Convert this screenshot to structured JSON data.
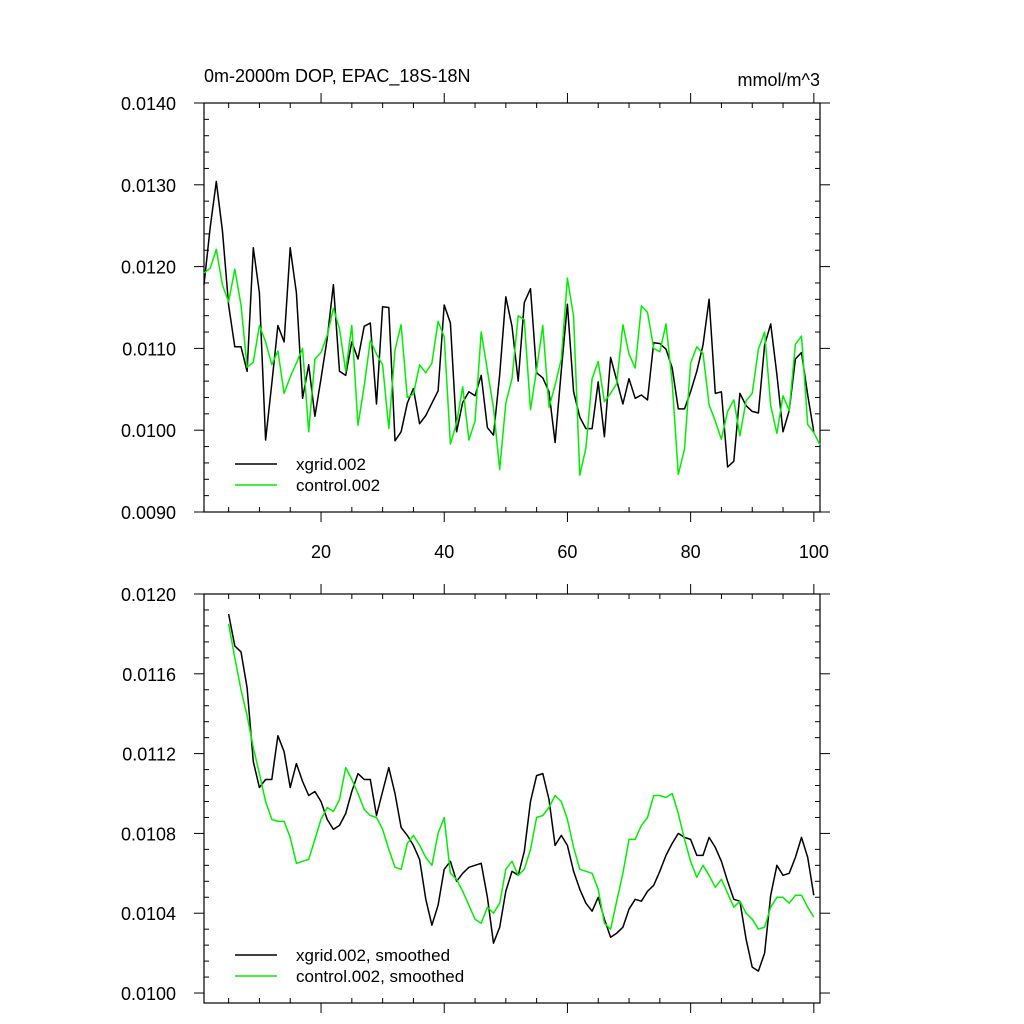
{
  "figure": {
    "title": "0m-2000m DOP, EPAC_18S-18N",
    "units": "mmol/m^3"
  },
  "chart_data": [
    {
      "type": "line",
      "title": "0m-2000m DOP, EPAC_18S-18N",
      "units_label": "mmol/m^3",
      "xlim": [
        1,
        101
      ],
      "ylim": [
        0.009,
        0.014
      ],
      "x_ticks": [
        20,
        40,
        60,
        80,
        100
      ],
      "x_tick_labels": [
        "20",
        "40",
        "60",
        "80",
        "100"
      ],
      "y_ticks": [
        0.009,
        0.01,
        0.011,
        0.012,
        0.013,
        0.014
      ],
      "y_tick_labels": [
        "0.0090",
        "0.0100",
        "0.0110",
        "0.0120",
        "0.0130",
        "0.0140"
      ],
      "grid": false,
      "legend_position": "bottom-left",
      "series": [
        {
          "name": "xgrid.002",
          "color": "#000000",
          "x_start": 1,
          "values": [
            0.01178,
            0.01248,
            0.01304,
            0.01243,
            0.01153,
            0.01102,
            0.01102,
            0.01072,
            0.01223,
            0.01168,
            0.00988,
            0.01057,
            0.01128,
            0.01108,
            0.01223,
            0.01168,
            0.01039,
            0.0108,
            0.01017,
            0.01063,
            0.01112,
            0.01178,
            0.01072,
            0.01067,
            0.01108,
            0.01087,
            0.01127,
            0.01131,
            0.01032,
            0.01151,
            0.0115,
            0.00987,
            0.00998,
            0.01033,
            0.01051,
            0.01008,
            0.01018,
            0.01033,
            0.01048,
            0.01153,
            0.01131,
            0.00998,
            0.01034,
            0.01047,
            0.01042,
            0.01067,
            0.01003,
            0.00994,
            0.01068,
            0.01163,
            0.01127,
            0.0106,
            0.01156,
            0.01173,
            0.0107,
            0.01064,
            0.01047,
            0.00985,
            0.01073,
            0.01154,
            0.01047,
            0.01016,
            0.01002,
            0.01002,
            0.01059,
            0.00992,
            0.01089,
            0.01061,
            0.01032,
            0.01063,
            0.01039,
            0.01043,
            0.01037,
            0.01107,
            0.01106,
            0.01099,
            0.01076,
            0.01026,
            0.01026,
            0.01047,
            0.01072,
            0.01104,
            0.0116,
            0.01045,
            0.01047,
            0.00955,
            0.00962,
            0.01045,
            0.0103,
            0.01023,
            0.01021,
            0.01104,
            0.0113,
            0.01068,
            0.00998,
            0.01024,
            0.01087,
            0.01095,
            0.01043,
            0.00998
          ]
        },
        {
          "name": "control.002",
          "color": "#00ee00",
          "x_start": 1,
          "values": [
            0.01192,
            0.01198,
            0.01221,
            0.01177,
            0.01157,
            0.01197,
            0.01153,
            0.01077,
            0.01083,
            0.01128,
            0.01108,
            0.0108,
            0.01097,
            0.01045,
            0.01065,
            0.01082,
            0.011,
            0.00998,
            0.01087,
            0.01095,
            0.01116,
            0.01149,
            0.01124,
            0.01072,
            0.01128,
            0.01006,
            0.01054,
            0.0111,
            0.01093,
            0.0108,
            0.01002,
            0.01098,
            0.01129,
            0.0104,
            0.01044,
            0.0108,
            0.0107,
            0.01082,
            0.01133,
            0.01114,
            0.00983,
            0.01009,
            0.01053,
            0.00988,
            0.01011,
            0.0112,
            0.01073,
            0.01027,
            0.00952,
            0.01033,
            0.01063,
            0.0114,
            0.01135,
            0.01025,
            0.01074,
            0.01128,
            0.01028,
            0.01055,
            0.01087,
            0.01186,
            0.01139,
            0.00945,
            0.00978,
            0.01063,
            0.01084,
            0.01035,
            0.01045,
            0.01057,
            0.01129,
            0.01093,
            0.01076,
            0.01152,
            0.01144,
            0.011,
            0.01096,
            0.0113,
            0.01058,
            0.00946,
            0.00977,
            0.01082,
            0.01102,
            0.01094,
            0.01031,
            0.01011,
            0.00989,
            0.01023,
            0.01037,
            0.00993,
            0.01036,
            0.01045,
            0.01099,
            0.0112,
            0.0103,
            0.00996,
            0.01042,
            0.01024,
            0.01105,
            0.01115,
            0.01007,
            0.00997,
            0.00982
          ]
        }
      ]
    },
    {
      "type": "line",
      "xlim": [
        1,
        101
      ],
      "ylim": [
        0.00995,
        0.012
      ],
      "x_ticks": [
        20,
        40,
        60,
        80,
        100
      ],
      "y_ticks": [
        0.01,
        0.0104,
        0.0108,
        0.0112,
        0.0116,
        0.012
      ],
      "y_tick_labels": [
        "0.0100",
        "0.0104",
        "0.0108",
        "0.0112",
        "0.0116",
        "0.0120"
      ],
      "grid": false,
      "legend_position": "bottom-left",
      "series": [
        {
          "name": "xgrid.002, smoothed",
          "color": "#000000",
          "x_start": 5,
          "values": [
            0.0119,
            0.01174,
            0.01171,
            0.01153,
            0.01116,
            0.01103,
            0.01107,
            0.01107,
            0.01129,
            0.01121,
            0.01103,
            0.01115,
            0.01106,
            0.01099,
            0.01101,
            0.01096,
            0.01087,
            0.01082,
            0.01084,
            0.0109,
            0.01101,
            0.0111,
            0.01107,
            0.01107,
            0.01089,
            0.01101,
            0.01113,
            0.011,
            0.01083,
            0.01079,
            0.01074,
            0.01067,
            0.01047,
            0.01034,
            0.01044,
            0.01062,
            0.01066,
            0.01056,
            0.0106,
            0.01063,
            0.01064,
            0.01065,
            0.01048,
            0.01025,
            0.01033,
            0.01051,
            0.01061,
            0.01059,
            0.01071,
            0.01096,
            0.01109,
            0.0111,
            0.01097,
            0.01074,
            0.01079,
            0.01074,
            0.01061,
            0.01052,
            0.01045,
            0.01041,
            0.01048,
            0.01037,
            0.01028,
            0.0103,
            0.01033,
            0.01042,
            0.01047,
            0.01046,
            0.01051,
            0.01054,
            0.01061,
            0.01069,
            0.01075,
            0.0108,
            0.01078,
            0.01077,
            0.01069,
            0.01069,
            0.01078,
            0.01073,
            0.01066,
            0.01056,
            0.01047,
            0.01046,
            0.01027,
            0.01013,
            0.01011,
            0.0102,
            0.01049,
            0.01064,
            0.01059,
            0.0106,
            0.01068,
            0.01078,
            0.01068,
            0.01049
          ]
        },
        {
          "name": "control.002, smoothed",
          "color": "#00ee00",
          "x_start": 5,
          "values": [
            0.01185,
            0.01168,
            0.01152,
            0.01139,
            0.01123,
            0.0111,
            0.01096,
            0.01087,
            0.01086,
            0.01086,
            0.01078,
            0.01065,
            0.01066,
            0.01067,
            0.01077,
            0.01087,
            0.01093,
            0.01091,
            0.01097,
            0.01113,
            0.01107,
            0.011,
            0.01092,
            0.01089,
            0.01088,
            0.01082,
            0.01072,
            0.01063,
            0.01062,
            0.01075,
            0.01079,
            0.01074,
            0.01068,
            0.01064,
            0.0108,
            0.01088,
            0.0106,
            0.01057,
            0.01051,
            0.01044,
            0.01037,
            0.01035,
            0.01043,
            0.0104,
            0.01045,
            0.01062,
            0.01066,
            0.01059,
            0.01062,
            0.01072,
            0.01088,
            0.01089,
            0.01093,
            0.01099,
            0.01096,
            0.01087,
            0.01073,
            0.01062,
            0.01061,
            0.0106,
            0.01052,
            0.01035,
            0.01032,
            0.01046,
            0.0106,
            0.01077,
            0.01077,
            0.01084,
            0.01088,
            0.01099,
            0.01099,
            0.01098,
            0.011,
            0.0109,
            0.01077,
            0.01066,
            0.01058,
            0.01064,
            0.01059,
            0.01053,
            0.01057,
            0.0105,
            0.01043,
            0.01046,
            0.0104,
            0.01037,
            0.01032,
            0.01033,
            0.01043,
            0.01048,
            0.01048,
            0.01045,
            0.01049,
            0.01049,
            0.01043,
            0.01038
          ]
        }
      ]
    }
  ]
}
